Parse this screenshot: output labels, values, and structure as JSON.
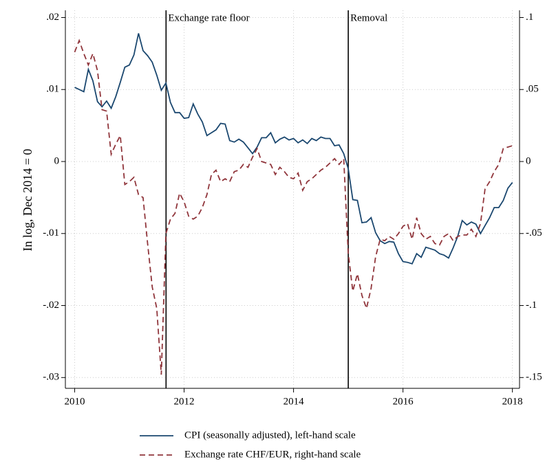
{
  "chart_data": {
    "type": "line",
    "ylabel": "In log, Dec 2014 = 0",
    "x": [
      2010,
      2010.083,
      2010.167,
      2010.25,
      2010.333,
      2010.417,
      2010.5,
      2010.583,
      2010.667,
      2010.75,
      2010.833,
      2010.917,
      2011,
      2011.083,
      2011.167,
      2011.25,
      2011.333,
      2011.417,
      2011.5,
      2011.583,
      2011.667,
      2011.75,
      2011.833,
      2011.917,
      2012,
      2012.083,
      2012.167,
      2012.25,
      2012.333,
      2012.417,
      2012.5,
      2012.583,
      2012.667,
      2012.75,
      2012.833,
      2012.917,
      2013,
      2013.083,
      2013.167,
      2013.25,
      2013.333,
      2013.417,
      2013.5,
      2013.583,
      2013.667,
      2013.75,
      2013.833,
      2013.917,
      2014,
      2014.083,
      2014.167,
      2014.25,
      2014.333,
      2014.417,
      2014.5,
      2014.583,
      2014.667,
      2014.75,
      2014.833,
      2014.917,
      2015,
      2015.083,
      2015.167,
      2015.25,
      2015.333,
      2015.417,
      2015.5,
      2015.583,
      2015.667,
      2015.75,
      2015.833,
      2015.917,
      2016,
      2016.083,
      2016.167,
      2016.25,
      2016.333,
      2016.417,
      2016.5,
      2016.583,
      2016.667,
      2016.75,
      2016.833,
      2016.917,
      2017,
      2017.083,
      2017.167,
      2017.25,
      2017.333,
      2017.417,
      2017.5,
      2017.583,
      2017.667,
      2017.75,
      2017.833,
      2017.917,
      2018
    ],
    "series": [
      {
        "name": "CPI (seasonally adjusted), left-hand scale",
        "color": "#1a476f",
        "dash": "solid",
        "values": [
          0.0103,
          0.01,
          0.0097,
          0.0128,
          0.0112,
          0.0083,
          0.0076,
          0.0084,
          0.0074,
          0.009,
          0.011,
          0.0131,
          0.0134,
          0.0148,
          0.0178,
          0.0154,
          0.0147,
          0.0138,
          0.012,
          0.0099,
          0.0109,
          0.0082,
          0.0068,
          0.0068,
          0.006,
          0.0061,
          0.008,
          0.0066,
          0.0055,
          0.0036,
          0.004,
          0.0044,
          0.0053,
          0.0052,
          0.0029,
          0.0027,
          0.0031,
          0.0027,
          0.0019,
          0.0011,
          0.002,
          0.0033,
          0.0033,
          0.004,
          0.0026,
          0.0031,
          0.0034,
          0.003,
          0.0032,
          0.0026,
          0.003,
          0.0025,
          0.0032,
          0.0029,
          0.0034,
          0.0032,
          0.0032,
          0.0022,
          0.0023,
          0.0011,
          -0.001,
          -0.0053,
          -0.0054,
          -0.0085,
          -0.0084,
          -0.0078,
          -0.0099,
          -0.011,
          -0.0114,
          -0.0111,
          -0.0112,
          -0.0128,
          -0.0139,
          -0.014,
          -0.0142,
          -0.0128,
          -0.0133,
          -0.0119,
          -0.0121,
          -0.0123,
          -0.0128,
          -0.013,
          -0.0134,
          -0.012,
          -0.0104,
          -0.0082,
          -0.0088,
          -0.0084,
          -0.0087,
          -0.01,
          -0.0089,
          -0.0078,
          -0.0064,
          -0.0064,
          -0.0054,
          -0.0037,
          -0.0029
        ]
      },
      {
        "name": "Exchange rate CHF/EUR, right-hand scale",
        "color": "#90353b",
        "dash": "dashed",
        "axis": "y2",
        "values": [
          0.076,
          0.084,
          0.075,
          0.067,
          0.075,
          0.063,
          0.036,
          0.035,
          0.005,
          0.012,
          0.018,
          -0.016,
          -0.014,
          -0.011,
          -0.023,
          -0.025,
          -0.057,
          -0.087,
          -0.102,
          -0.148,
          -0.05,
          -0.04,
          -0.036,
          -0.022,
          -0.028,
          -0.038,
          -0.04,
          -0.038,
          -0.032,
          -0.023,
          -0.009,
          -0.006,
          -0.014,
          -0.012,
          -0.014,
          -0.007,
          -0.006,
          -0.002,
          -0.004,
          0.003,
          0.009,
          0,
          -0.001,
          -0.002,
          -0.009,
          -0.004,
          -0.007,
          -0.011,
          -0.012,
          -0.008,
          -0.02,
          -0.014,
          -0.012,
          -0.009,
          -0.006,
          -0.004,
          -0.001,
          0.002,
          -0.002,
          0.002,
          -0.064,
          -0.09,
          -0.078,
          -0.093,
          -0.102,
          -0.088,
          -0.066,
          -0.054,
          -0.055,
          -0.052,
          -0.054,
          -0.05,
          -0.045,
          -0.043,
          -0.054,
          -0.039,
          -0.05,
          -0.054,
          -0.052,
          -0.057,
          -0.058,
          -0.052,
          -0.05,
          -0.055,
          -0.052,
          -0.051,
          -0.051,
          -0.047,
          -0.052,
          -0.043,
          -0.019,
          -0.014,
          -0.007,
          -0.002,
          0.009,
          0.01,
          0.011
        ]
      }
    ],
    "annotations": [
      {
        "text": "Exchange rate floor",
        "x": 2011.67
      },
      {
        "text": "Removal",
        "x": 2015.0
      }
    ],
    "xlim": [
      2009.83,
      2018.13
    ],
    "xticks": [
      2010,
      2012,
      2014,
      2016,
      2018
    ],
    "ylim": [
      -0.0315,
      0.021
    ],
    "yticks": [
      {
        "value": -0.03,
        "label": "-.03"
      },
      {
        "value": -0.02,
        "label": "-.02"
      },
      {
        "value": -0.01,
        "label": "-.01"
      },
      0,
      {
        "value": 0.01,
        "label": ".01"
      },
      {
        "value": 0.02,
        "label": ".02"
      }
    ],
    "y2lim": [
      -0.1575,
      0.105
    ],
    "y2ticks": [
      {
        "value": -0.15,
        "label": "-.15"
      },
      {
        "value": -0.1,
        "label": "-.1"
      },
      {
        "value": -0.05,
        "label": "-.05"
      },
      0,
      {
        "value": 0.05,
        "label": ".05"
      },
      {
        "value": 0.1,
        "label": ".1"
      }
    ],
    "grid": true
  }
}
